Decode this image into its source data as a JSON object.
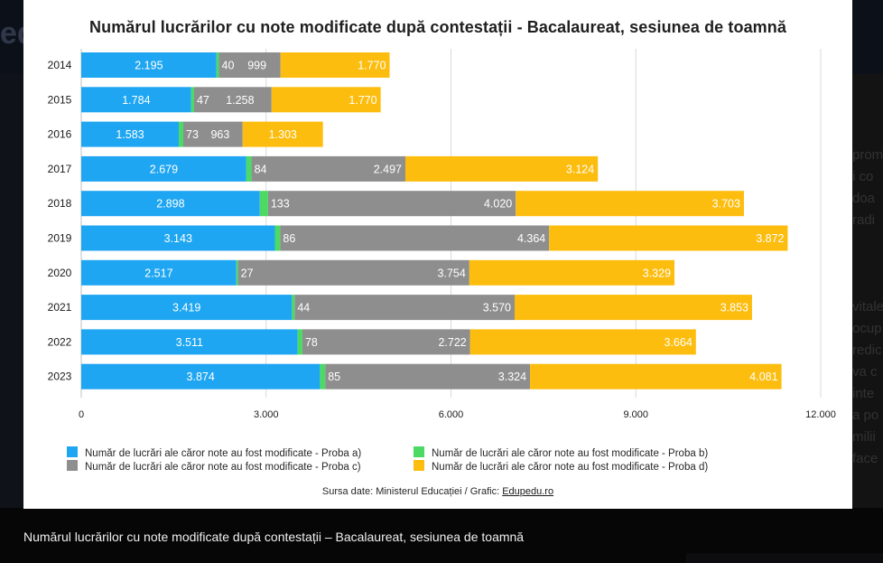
{
  "chart_data": {
    "type": "bar",
    "orientation": "horizontal",
    "stacked": true,
    "title": "Numărul lucrărilor cu note modificate după contestații - Bacalaureat, sesiunea de toamnă",
    "categories": [
      "2014",
      "2015",
      "2016",
      "2017",
      "2018",
      "2019",
      "2020",
      "2021",
      "2022",
      "2023"
    ],
    "series": [
      {
        "name": "Număr de lucrări ale căror note au fost modificate - Proba a)",
        "color": "#1fa6f2",
        "values": [
          2195,
          1784,
          1583,
          2679,
          2898,
          3143,
          2517,
          3419,
          3511,
          3874
        ],
        "labels": [
          "2.195",
          "1.784",
          "1.583",
          "2.679",
          "2.898",
          "3.143",
          "2.517",
          "3.419",
          "3.511",
          "3.874"
        ]
      },
      {
        "name": "Număr de lucrări ale căror note au fost modificate -  Proba b)",
        "color": "#4cd964",
        "values": [
          40,
          47,
          73,
          84,
          133,
          86,
          27,
          44,
          78,
          85
        ],
        "labels": [
          "40",
          "47",
          "73",
          "84",
          "133",
          "86",
          "27",
          "44",
          "78",
          "85"
        ]
      },
      {
        "name": "Număr de lucrări ale căror note au fost modificate - Proba c)",
        "color": "#8e8e8e",
        "values": [
          999,
          1258,
          963,
          2497,
          4020,
          4364,
          3754,
          3570,
          2722,
          3324
        ],
        "labels": [
          "999",
          "1.258",
          "963",
          "2.497",
          "4.020",
          "4.364",
          "3.754",
          "3.570",
          "2.722",
          "3.324"
        ]
      },
      {
        "name": "Număr de lucrări ale căror note au fost modificate -  Proba d)",
        "color": "#fdbd0f",
        "values": [
          1770,
          1770,
          1303,
          3124,
          3703,
          3872,
          3329,
          3853,
          3664,
          4081
        ],
        "labels": [
          "1.770",
          "1.770",
          "1.303",
          "3.124",
          "3.703",
          "3.872",
          "3.329",
          "3.853",
          "3.664",
          "4.081"
        ]
      }
    ],
    "xlim": [
      0,
      12000
    ],
    "xticks": [
      0,
      3000,
      6000,
      9000,
      12000
    ],
    "xtick_labels": [
      "0",
      "3.000",
      "6.000",
      "9.000",
      "12.000"
    ],
    "grid": true,
    "legend_position": "bottom"
  },
  "source_prefix": "Sursa date: Ministerul Educației / Grafic: ",
  "source_link": "Edupedu.ro",
  "caption": "Numărul lucrărilor cu note modificate după contestații – Bacalaureat, sesiunea de toamnă",
  "background": {
    "logo": "ed",
    "right_fragments": [
      "prom",
      "i co",
      "doa",
      "radi",
      "",
      "",
      "",
      "vitale",
      "ocup",
      "redic",
      "va c",
      "inte",
      "a po",
      "milii",
      "face"
    ]
  }
}
